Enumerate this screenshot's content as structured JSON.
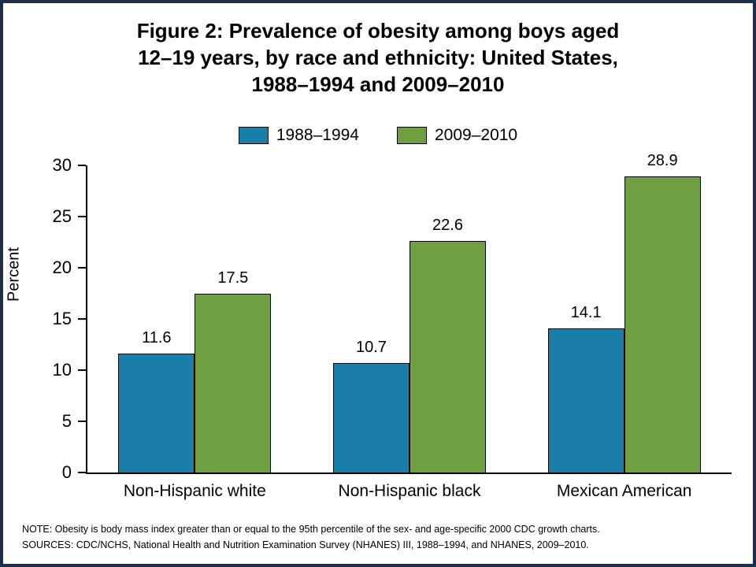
{
  "title_lines": [
    "Figure 2: Prevalence of obesity among boys aged",
    "12–19 years, by race and ethnicity: United States,",
    "1988–1994 and 2009–2010"
  ],
  "chart_data": {
    "type": "bar",
    "categories": [
      "Non-Hispanic white",
      "Non-Hispanic black",
      "Mexican American"
    ],
    "series": [
      {
        "name": "1988–1994",
        "color": "#1b7ea6",
        "values": [
          11.6,
          10.7,
          14.1
        ]
      },
      {
        "name": "2009–2010",
        "color": "#6e9f41",
        "values": [
          17.5,
          22.6,
          28.9
        ]
      }
    ],
    "title": "Figure 2: Prevalence of obesity among boys aged 12–19 years, by race and ethnicity: United States, 1988–1994 and 2009–2010",
    "xlabel": "",
    "ylabel": "Percent",
    "ylim": [
      0,
      30
    ],
    "ytick_step": 5,
    "grid": "off",
    "legend_position": "top",
    "value_labels": true
  },
  "notes": [
    "NOTE: Obesity is body mass index greater than or equal to the 95th percentile of the sex- and age-specific 2000 CDC growth charts.",
    "SOURCES: CDC/NCHS, National Health and Nutrition Examination Survey (NHANES) III, 1988–1994, and NHANES, 2009–2010."
  ]
}
